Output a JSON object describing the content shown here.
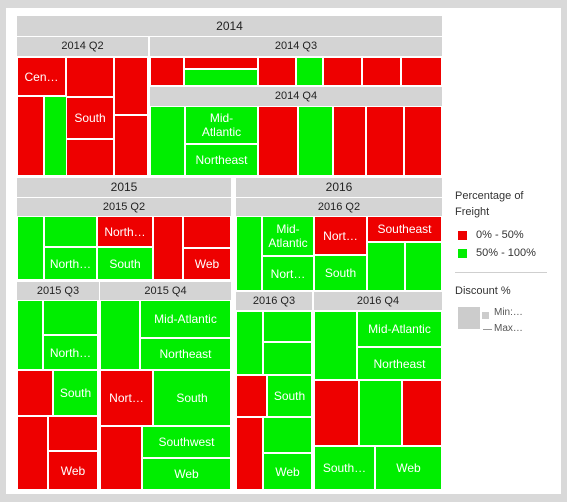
{
  "colors": {
    "red": "#ee0000",
    "green": "#00ee00",
    "header": "#d4d4d4"
  },
  "chart_data": {
    "type": "treemap",
    "hierarchy": [
      "year",
      "quarter",
      "region"
    ],
    "color_metric": "Percentage of Freight",
    "size_metric": "Discount %",
    "headers": {
      "y2014": "2014",
      "y2015": "2015",
      "y2016": "2016",
      "q2014_2": "2014 Q2",
      "q2014_3": "2014 Q3",
      "q2014_4": "2014 Q4",
      "q2015_2": "2015 Q2",
      "q2015_3": "2015 Q3",
      "q2015_4": "2015 Q4",
      "q2016_2": "2016 Q2",
      "q2016_3": "2016 Q3",
      "q2016_4": "2016 Q4"
    },
    "tiles": [
      {
        "id": "2014Q2-1",
        "label": "Cen…",
        "color": "red"
      },
      {
        "id": "2014Q2-2",
        "label": "",
        "color": "red"
      },
      {
        "id": "2014Q2-3",
        "label": "",
        "color": "red"
      },
      {
        "id": "2014Q2-4",
        "label": "",
        "color": "red"
      },
      {
        "id": "2014Q2-5",
        "label": "",
        "color": "red"
      },
      {
        "id": "2014Q2-6",
        "label": "",
        "color": "green"
      },
      {
        "id": "2014Q2-7",
        "label": "",
        "color": "green"
      },
      {
        "id": "2014Q2-8",
        "label": "South",
        "color": "red"
      },
      {
        "id": "2014Q2-9",
        "label": "",
        "color": "red"
      },
      {
        "id": "2014Q2-10",
        "label": "",
        "color": "red"
      },
      {
        "id": "2014Q3-1",
        "label": "",
        "color": "red"
      },
      {
        "id": "2014Q3-2",
        "label": "",
        "color": "red"
      },
      {
        "id": "2014Q3-3",
        "label": "",
        "color": "green"
      },
      {
        "id": "2014Q3-4",
        "label": "",
        "color": "red"
      },
      {
        "id": "2014Q3-5",
        "label": "",
        "color": "green"
      },
      {
        "id": "2014Q3-6",
        "label": "",
        "color": "red"
      },
      {
        "id": "2014Q3-7",
        "label": "",
        "color": "red"
      },
      {
        "id": "2014Q3-8",
        "label": "",
        "color": "red"
      },
      {
        "id": "2014Q4-1",
        "label": "",
        "color": "green"
      },
      {
        "id": "2014Q4-2",
        "label": "Mid-\nAtlantic",
        "color": "green"
      },
      {
        "id": "2014Q4-3",
        "label": "Northeast",
        "color": "green"
      },
      {
        "id": "2014Q4-4",
        "label": "",
        "color": "red"
      },
      {
        "id": "2014Q4-5",
        "label": "",
        "color": "green"
      },
      {
        "id": "2014Q4-6",
        "label": "",
        "color": "red"
      },
      {
        "id": "2014Q4-7",
        "label": "",
        "color": "red"
      },
      {
        "id": "2014Q4-8",
        "label": "",
        "color": "red"
      },
      {
        "id": "2015Q2-1",
        "label": "",
        "color": "green"
      },
      {
        "id": "2015Q2-2",
        "label": "",
        "color": "green"
      },
      {
        "id": "2015Q2-3",
        "label": "North…",
        "color": "green"
      },
      {
        "id": "2015Q2-4",
        "label": "North…",
        "color": "red"
      },
      {
        "id": "2015Q2-5",
        "label": "South",
        "color": "green"
      },
      {
        "id": "2015Q2-6",
        "label": "",
        "color": "red"
      },
      {
        "id": "2015Q2-7",
        "label": "",
        "color": "red"
      },
      {
        "id": "2015Q2-8",
        "label": "Web",
        "color": "red"
      },
      {
        "id": "2015Q3-1",
        "label": "",
        "color": "green"
      },
      {
        "id": "2015Q3-2",
        "label": "",
        "color": "green"
      },
      {
        "id": "2015Q3-3",
        "label": "North…",
        "color": "green"
      },
      {
        "id": "2015Q3-4",
        "label": "",
        "color": "red"
      },
      {
        "id": "2015Q3-5",
        "label": "South",
        "color": "green"
      },
      {
        "id": "2015Q3-6",
        "label": "",
        "color": "red"
      },
      {
        "id": "2015Q3-7",
        "label": "",
        "color": "red"
      },
      {
        "id": "2015Q3-8",
        "label": "Web",
        "color": "red"
      },
      {
        "id": "2015Q4-1",
        "label": "",
        "color": "green"
      },
      {
        "id": "2015Q4-2",
        "label": "Mid-Atlantic",
        "color": "green"
      },
      {
        "id": "2015Q4-3",
        "label": "Northeast",
        "color": "green"
      },
      {
        "id": "2015Q4-4",
        "label": "Nort…",
        "color": "red"
      },
      {
        "id": "2015Q4-5",
        "label": "South",
        "color": "green"
      },
      {
        "id": "2015Q4-6",
        "label": "",
        "color": "red"
      },
      {
        "id": "2015Q4-7",
        "label": "Southwest",
        "color": "green"
      },
      {
        "id": "2015Q4-8",
        "label": "Web",
        "color": "green"
      },
      {
        "id": "2016Q2-1",
        "label": "",
        "color": "green"
      },
      {
        "id": "2016Q2-2",
        "label": "Mid-\nAtlantic",
        "color": "green"
      },
      {
        "id": "2016Q2-3",
        "label": "Nort…",
        "color": "green"
      },
      {
        "id": "2016Q2-4",
        "label": "Nort…",
        "color": "red"
      },
      {
        "id": "2016Q2-5",
        "label": "South",
        "color": "green"
      },
      {
        "id": "2016Q2-6",
        "label": "Southeast",
        "color": "red"
      },
      {
        "id": "2016Q2-7",
        "label": "",
        "color": "green"
      },
      {
        "id": "2016Q2-8",
        "label": "",
        "color": "green"
      },
      {
        "id": "2016Q3-1",
        "label": "",
        "color": "green"
      },
      {
        "id": "2016Q3-2",
        "label": "",
        "color": "green"
      },
      {
        "id": "2016Q3-3",
        "label": "",
        "color": "green"
      },
      {
        "id": "2016Q3-4",
        "label": "",
        "color": "red"
      },
      {
        "id": "2016Q3-5",
        "label": "South",
        "color": "green"
      },
      {
        "id": "2016Q3-6",
        "label": "",
        "color": "red"
      },
      {
        "id": "2016Q3-7",
        "label": "",
        "color": "green"
      },
      {
        "id": "2016Q3-8",
        "label": "Web",
        "color": "green"
      },
      {
        "id": "2016Q4-1",
        "label": "",
        "color": "green"
      },
      {
        "id": "2016Q4-2",
        "label": "Mid-Atlantic",
        "color": "green"
      },
      {
        "id": "2016Q4-3",
        "label": "Northeast",
        "color": "green"
      },
      {
        "id": "2016Q4-4",
        "label": "",
        "color": "red"
      },
      {
        "id": "2016Q4-5",
        "label": "",
        "color": "green"
      },
      {
        "id": "2016Q4-6",
        "label": "",
        "color": "red"
      },
      {
        "id": "2016Q4-7",
        "label": "South…",
        "color": "green"
      },
      {
        "id": "2016Q4-8",
        "label": "Web",
        "color": "green"
      }
    ],
    "legend": {
      "color_title": "Percentage of\nFreight",
      "entries": [
        {
          "label": "0% - 50%",
          "color": "red"
        },
        {
          "label": "50% - 100%",
          "color": "green"
        }
      ],
      "size_title": "Discount %",
      "size_min": "Min:…",
      "size_max": "Max…",
      "placement": "right"
    }
  }
}
